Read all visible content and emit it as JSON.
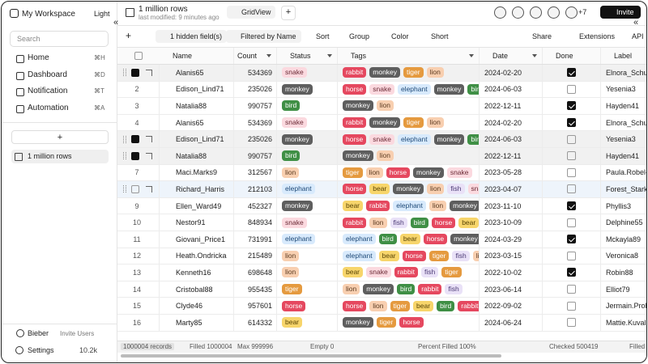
{
  "sidebar": {
    "workspace": "My Workspace",
    "theme": "Light",
    "search": "Search",
    "nav": [
      {
        "label": "Home",
        "shortcut": "⌘H"
      },
      {
        "label": "Dashboard",
        "shortcut": "⌘D"
      },
      {
        "label": "Notification",
        "shortcut": "⌘T"
      },
      {
        "label": "Automation",
        "shortcut": "⌘A"
      }
    ],
    "add": "+",
    "tables": [
      "1 million rows"
    ],
    "user": "Bieber",
    "invite": "Invite Users",
    "settings": "Settings",
    "settings_count": "10.2k"
  },
  "topbar": {
    "title": "1 million rows",
    "subtitle": "last modified: 9 minutes ago",
    "view": "GridView",
    "add_view": "+",
    "more_users": "+7",
    "invite": "Invite"
  },
  "toolbar": {
    "add": "+",
    "items": [
      "1 hidden field(s)",
      "Filtered by Name",
      "Sort",
      "Group",
      "Color",
      "Short"
    ],
    "right": [
      "Share",
      "Extensions",
      "API"
    ]
  },
  "tag_colors": {
    "rabbit": [
      "#e5485f",
      "#ffffff"
    ],
    "monkey": [
      "#5e5e5e",
      "#ffffff"
    ],
    "tiger": [
      "#e59a3f",
      "#ffffff"
    ],
    "lion": [
      "#f8cfb0",
      "#5a3a20"
    ],
    "snake": [
      "#fbd9df",
      "#6b2b36"
    ],
    "horse": [
      "#e5485f",
      "#ffffff"
    ],
    "elephant": [
      "#d8eafc",
      "#1f4a78"
    ],
    "bird": [
      "#3f8f45",
      "#ffffff"
    ],
    "bear": [
      "#f7d56b",
      "#5a4506"
    ],
    "fish": [
      "#e9e1f7",
      "#4b3a75"
    ]
  },
  "table": {
    "columns": [
      "Name",
      "Count",
      "Status",
      "Tags",
      "Date",
      "Done",
      "Label"
    ],
    "rows": [
      {
        "num": null,
        "selected": true,
        "name": "Alanis65",
        "count": 534369,
        "status": "snake",
        "tags": [
          "rabbit",
          "monkey",
          "tiger",
          "lion"
        ],
        "date": "2024-02-20",
        "done": true,
        "label": "Elnora_Schup"
      },
      {
        "num": "2",
        "selected": false,
        "name": "Edison_Lind71",
        "count": 235026,
        "status": "monkey",
        "tags": [
          "horse",
          "snake",
          "elephant",
          "monkey",
          "bird"
        ],
        "date": "2024-06-03",
        "done": false,
        "label": "Yesenia3"
      },
      {
        "num": "3",
        "selected": false,
        "name": "Natalia88",
        "count": 990757,
        "status": "bird",
        "tags": [
          "monkey",
          "lion"
        ],
        "date": "2022-12-11",
        "done": true,
        "label": "Hayden41"
      },
      {
        "num": "4",
        "selected": false,
        "name": "Alanis65",
        "count": 534369,
        "status": "snake",
        "tags": [
          "rabbit",
          "monkey",
          "tiger",
          "lion"
        ],
        "date": "2024-02-20",
        "done": true,
        "label": "Elnora_Schup"
      },
      {
        "num": null,
        "selected": true,
        "name": "Edison_Lind71",
        "count": 235026,
        "status": "monkey",
        "tags": [
          "horse",
          "snake",
          "elephant",
          "monkey",
          "bird"
        ],
        "date": "2024-06-03",
        "done": false,
        "label": "Yesenia3"
      },
      {
        "num": null,
        "selected": true,
        "name": "Natalia88",
        "count": 990757,
        "status": "bird",
        "tags": [
          "monkey",
          "lion"
        ],
        "date": "2022-12-11",
        "done": false,
        "label": "Hayden41"
      },
      {
        "num": "7",
        "selected": false,
        "name": "Maci.Marks9",
        "count": 312567,
        "status": "lion",
        "tags": [
          "tiger",
          "lion",
          "horse",
          "monkey",
          "snake"
        ],
        "date": "2023-05-28",
        "done": false,
        "label": "Paula.Robel-"
      },
      {
        "num": null,
        "selected": false,
        "name": "Richard_Harris",
        "count": 212103,
        "status": "elephant",
        "tags": [
          "horse",
          "bear",
          "monkey",
          "lion",
          "fish",
          "snake"
        ],
        "date": "2023-04-07",
        "done": false,
        "label": "Forest_Stark"
      },
      {
        "num": "9",
        "selected": false,
        "name": "Ellen_Ward49",
        "count": 452327,
        "status": "monkey",
        "tags": [
          "bear",
          "rabbit",
          "elephant",
          "lion",
          "monkey"
        ],
        "date": "2023-11-10",
        "done": true,
        "label": "Phyllis3"
      },
      {
        "num": "10",
        "selected": false,
        "name": "Nestor91",
        "count": 848934,
        "status": "snake",
        "tags": [
          "rabbit",
          "lion",
          "fish",
          "bird",
          "horse",
          "bear"
        ],
        "date": "2023-10-09",
        "done": false,
        "label": "Delphine55"
      },
      {
        "num": "11",
        "selected": false,
        "name": "Giovani_Price1",
        "count": 731991,
        "status": "elephant",
        "tags": [
          "elephant",
          "bird",
          "bear",
          "horse",
          "monkey"
        ],
        "date": "2024-03-29",
        "done": true,
        "label": "Mckayla89"
      },
      {
        "num": "12",
        "selected": false,
        "name": "Heath.Ondricka",
        "count": 215489,
        "status": "lion",
        "tags": [
          "elephant",
          "bear",
          "horse",
          "tiger",
          "fish",
          "lion"
        ],
        "date": "2023-03-15",
        "done": false,
        "label": "Veronica8"
      },
      {
        "num": "13",
        "selected": false,
        "name": "Kenneth16",
        "count": 698648,
        "status": "lion",
        "tags": [
          "bear",
          "snake",
          "rabbit",
          "fish",
          "tiger"
        ],
        "date": "2022-10-02",
        "done": true,
        "label": "Robin88"
      },
      {
        "num": "14",
        "selected": false,
        "name": "Cristobal88",
        "count": 955435,
        "status": "tiger",
        "tags": [
          "lion",
          "monkey",
          "bird",
          "rabbit",
          "fish"
        ],
        "date": "2023-06-14",
        "done": false,
        "label": "Elliot79"
      },
      {
        "num": "15",
        "selected": false,
        "name": "Clyde46",
        "count": 957601,
        "status": "horse",
        "tags": [
          "horse",
          "lion",
          "tiger",
          "bear",
          "bird",
          "rabbit"
        ],
        "date": "2022-09-02",
        "done": false,
        "label": "Jermain.Proh"
      },
      {
        "num": "16",
        "selected": false,
        "name": "Marty85",
        "count": 614332,
        "status": "bear",
        "tags": [
          "monkey",
          "tiger",
          "horse"
        ],
        "date": "2024-06-24",
        "done": false,
        "label": "Mattie.Kuval"
      }
    ]
  },
  "footer": [
    "1000004 records",
    "Filled 1000004",
    "Max 999996",
    "Empty 0",
    "Percent Filled 100%",
    "Checked 500419",
    "Filled"
  ]
}
